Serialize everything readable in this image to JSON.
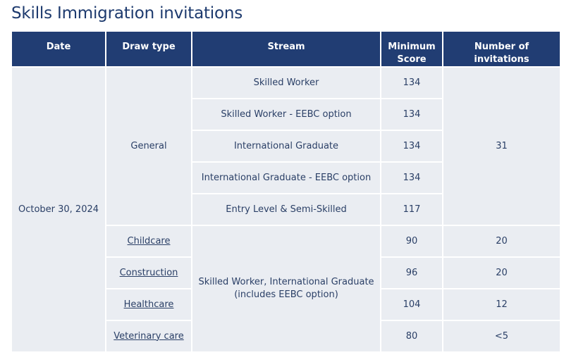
{
  "title": "Skills Immigration invitations",
  "headers": {
    "date": "Date",
    "draw_type": "Draw type",
    "stream": "Stream",
    "minimum_score": "Minimum Score",
    "invitations": "Number of invitations"
  },
  "date": "October 30, 2024",
  "general": {
    "draw_type": "General",
    "invitations": "31",
    "rows": [
      {
        "stream": "Skilled Worker",
        "score": "134"
      },
      {
        "stream": "Skilled Worker - EEBC option",
        "score": "134"
      },
      {
        "stream": "International Graduate",
        "score": "134"
      },
      {
        "stream": "International Graduate - EEBC option",
        "score": "134"
      },
      {
        "stream": "Entry Level & Semi-Skilled",
        "score": "117"
      }
    ]
  },
  "targeted": {
    "stream": "Skilled Worker, International Graduate (includes EEBC option)",
    "rows": [
      {
        "draw_type": "Childcare",
        "score": "90",
        "invitations": "20"
      },
      {
        "draw_type": "Construction",
        "score": "96",
        "invitations": "20"
      },
      {
        "draw_type": "Healthcare",
        "score": "104",
        "invitations": "12"
      },
      {
        "draw_type": "Veterinary care",
        "score": "80",
        "invitations": "<5"
      }
    ]
  }
}
